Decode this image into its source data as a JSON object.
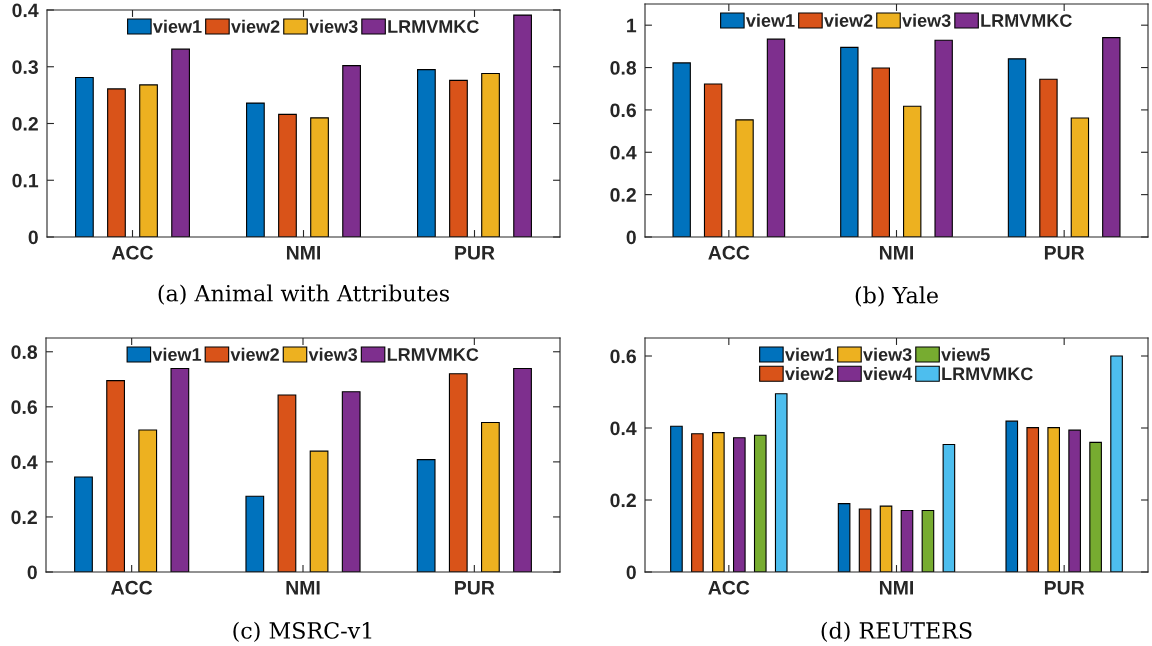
{
  "chart_data": [
    {
      "type": "bar",
      "title": "(a) Animal with Attributes",
      "categories": [
        "ACC",
        "NMI",
        "PUR"
      ],
      "ylim": [
        0,
        0.4
      ],
      "yticks": [
        0,
        0.1,
        0.2,
        0.3,
        0.4
      ],
      "legend": "top",
      "grid": false,
      "series": [
        {
          "name": "view1",
          "color": "#0072bd",
          "values": [
            0.281,
            0.236,
            0.295
          ]
        },
        {
          "name": "view2",
          "color": "#d95319",
          "values": [
            0.261,
            0.216,
            0.276
          ]
        },
        {
          "name": "view3",
          "color": "#edb120",
          "values": [
            0.268,
            0.21,
            0.288
          ]
        },
        {
          "name": "LRMVMKC",
          "color": "#7e2f8e",
          "values": [
            0.331,
            0.302,
            0.391
          ]
        }
      ]
    },
    {
      "type": "bar",
      "title": "(b) Yale",
      "categories": [
        "ACC",
        "NMI",
        "PUR"
      ],
      "ylim": [
        0,
        1.1
      ],
      "yticks": [
        0,
        0.2,
        0.4,
        0.6,
        0.8,
        1
      ],
      "legend": "top",
      "grid": false,
      "series": [
        {
          "name": "view1",
          "color": "#0072bd",
          "values": [
            0.822,
            0.895,
            0.841
          ]
        },
        {
          "name": "view2",
          "color": "#d95319",
          "values": [
            0.722,
            0.798,
            0.745
          ]
        },
        {
          "name": "view3",
          "color": "#edb120",
          "values": [
            0.553,
            0.617,
            0.562
          ]
        },
        {
          "name": "LRMVMKC",
          "color": "#7e2f8e",
          "values": [
            0.934,
            0.929,
            0.941
          ]
        }
      ]
    },
    {
      "type": "bar",
      "title": "(c) MSRC-v1",
      "categories": [
        "ACC",
        "NMI",
        "PUR"
      ],
      "ylim": [
        0,
        0.85
      ],
      "yticks": [
        0,
        0.2,
        0.4,
        0.6,
        0.8
      ],
      "legend": "top",
      "grid": false,
      "series": [
        {
          "name": "view1",
          "color": "#0072bd",
          "values": [
            0.345,
            0.275,
            0.408
          ]
        },
        {
          "name": "view2",
          "color": "#d95319",
          "values": [
            0.695,
            0.643,
            0.72
          ]
        },
        {
          "name": "view3",
          "color": "#edb120",
          "values": [
            0.516,
            0.439,
            0.543
          ]
        },
        {
          "name": "LRMVMKC",
          "color": "#7e2f8e",
          "values": [
            0.739,
            0.655,
            0.739
          ]
        }
      ]
    },
    {
      "type": "bar",
      "title": "(d) REUTERS",
      "categories": [
        "ACC",
        "NMI",
        "PUR"
      ],
      "ylim": [
        0,
        0.65
      ],
      "yticks": [
        0,
        0.2,
        0.4,
        0.6
      ],
      "legend": "top",
      "grid": false,
      "series": [
        {
          "name": "view1",
          "color": "#0072bd",
          "values": [
            0.405,
            0.19,
            0.419
          ]
        },
        {
          "name": "view2",
          "color": "#d95319",
          "values": [
            0.384,
            0.175,
            0.401
          ]
        },
        {
          "name": "view3",
          "color": "#edb120",
          "values": [
            0.387,
            0.183,
            0.401
          ]
        },
        {
          "name": "view4",
          "color": "#7e2f8e",
          "values": [
            0.373,
            0.171,
            0.394
          ]
        },
        {
          "name": "view5",
          "color": "#77ac30",
          "values": [
            0.38,
            0.171,
            0.36
          ]
        },
        {
          "name": "LRMVMKC",
          "color": "#4dbeee",
          "values": [
            0.495,
            0.354,
            0.6
          ]
        }
      ]
    }
  ]
}
